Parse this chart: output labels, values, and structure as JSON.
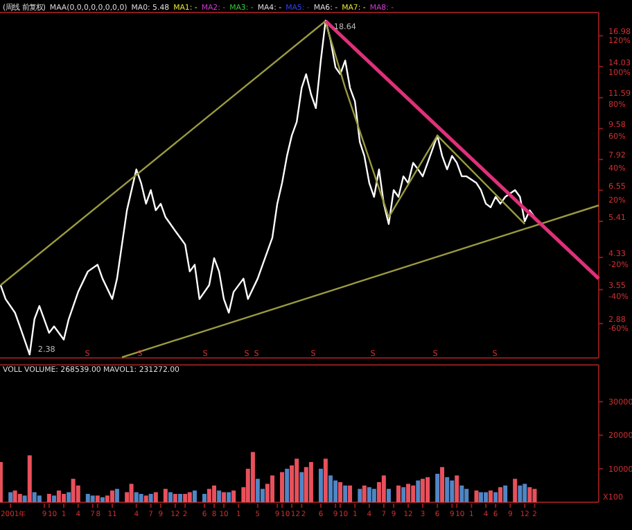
{
  "chart_data": [
    {
      "type": "line",
      "title": "(周线 前复权)",
      "log": "y",
      "grid": false,
      "tick_labels": "y",
      "xlim": [
        "2000-11-27",
        "2011-03-10"
      ],
      "ylim": [
        2.33,
        19.6
      ],
      "yticks": [
        16.98,
        14.03,
        11.59,
        9.58,
        7.92,
        6.55,
        5.41,
        4.33,
        3.55,
        2.88
      ],
      "y2lim": [
        -81.5,
        134.6
      ],
      "y2ticks": [
        {
          "value": 120,
          "label": "120%"
        },
        {
          "value": 100,
          "label": "100%"
        },
        {
          "value": 80,
          "label": "80%"
        },
        {
          "value": 60,
          "label": "60%"
        },
        {
          "value": 40,
          "label": "40%"
        },
        {
          "value": 20,
          "label": "20%"
        },
        {
          "value": -20,
          "label": "-20%"
        },
        {
          "value": -40,
          "label": "-40%"
        },
        {
          "value": -60,
          "label": "-60%"
        }
      ],
      "series": [
        {
          "color": "#ffffff",
          "x": [
            "2000-12",
            "2001-01",
            "2001-03",
            "2001-04",
            "2001-06",
            "2001-07",
            "2001-08",
            "2001-10",
            "2001-11",
            "2002-01",
            "2002-02",
            "2002-04",
            "2002-06",
            "2002-08",
            "2002-09",
            "2002-11",
            "2002-12",
            "2003-01",
            "2003-02",
            "2003-04",
            "2003-05",
            "2003-06",
            "2003-07",
            "2003-08",
            "2003-09",
            "2003-10",
            "2003-11",
            "2003-12",
            "2004-02",
            "2004-03",
            "2004-04",
            "2004-05",
            "2004-07",
            "2004-08",
            "2004-09",
            "2004-10",
            "2004-11",
            "2004-12",
            "2005-02",
            "2005-03",
            "2005-05",
            "2005-06",
            "2005-08",
            "2005-09",
            "2005-10",
            "2005-11",
            "2005-12",
            "2006-01",
            "2006-02",
            "2006-03",
            "2006-04",
            "2006-05",
            "2006-06",
            "2006-07",
            "2006-08",
            "2006-09",
            "2006-10",
            "2006-11",
            "2006-12",
            "2007-01",
            "2007-02",
            "2007-03",
            "2007-04",
            "2007-05",
            "2007-06",
            "2007-07",
            "2007-08",
            "2007-09",
            "2007-10",
            "2007-11",
            "2007-12",
            "2008-01",
            "2008-02",
            "2008-03",
            "2008-04",
            "2008-06",
            "2008-07",
            "2008-08",
            "2008-09",
            "2008-10",
            "2008-11",
            "2008-12",
            "2009-02",
            "2009-03",
            "2009-04",
            "2009-05",
            "2009-06",
            "2009-07",
            "2009-08",
            "2009-10",
            "2009-11",
            "2009-12",
            "2010-01",
            "2010-02"
          ],
          "values": [
            3.65,
            3.35,
            3.08,
            2.83,
            2.38,
            2.96,
            3.21,
            2.72,
            2.83,
            2.61,
            2.96,
            3.5,
            3.97,
            4.14,
            3.8,
            3.35,
            3.8,
            4.69,
            5.79,
            7.45,
            6.85,
            6.03,
            6.56,
            5.79,
            6.03,
            5.55,
            5.32,
            5.1,
            4.69,
            3.97,
            4.14,
            3.35,
            3.65,
            4.31,
            3.97,
            3.35,
            3.08,
            3.5,
            3.8,
            3.35,
            3.8,
            4.14,
            4.89,
            6.03,
            6.85,
            8.1,
            9.18,
            9.99,
            12.32,
            13.4,
            11.82,
            10.87,
            14.58,
            18.64,
            16.54,
            13.98,
            13.4,
            14.58,
            12.32,
            11.33,
            8.81,
            8.1,
            6.85,
            6.29,
            7.45,
            6.03,
            5.32,
            6.56,
            6.29,
            7.14,
            6.85,
            7.76,
            7.45,
            7.14,
            7.76,
            9.18,
            8.1,
            7.45,
            8.1,
            7.76,
            7.14,
            7.14,
            6.85,
            6.56,
            6.03,
            5.9,
            6.29,
            6.03,
            6.29,
            6.56,
            6.29,
            5.41,
            5.79,
            5.55
          ]
        },
        {
          "color": "#9a9a40",
          "x": [
            "2000-12",
            "2006-07"
          ],
          "values": [
            3.65,
            18.6
          ]
        },
        {
          "color": "#9a9a40",
          "x": [
            "2003-01",
            "2011-03-10"
          ],
          "values": [
            2.34,
            5.97
          ]
        },
        {
          "color": "#9a9a40",
          "x": [
            "2006-07",
            "2006-11",
            "2007-08",
            "2008-06",
            "2009-12"
          ],
          "values": [
            18.45,
            12.32,
            5.55,
            9.18,
            5.32
          ]
        },
        {
          "color": "#e0307a",
          "x": [
            "2006-07",
            "2011-03-10"
          ],
          "values": [
            18.6,
            3.8
          ]
        }
      ],
      "annotations": [
        "MAA(0,0,0,0,0,0,0,0)",
        "MA0: 5.48",
        "MA1: -",
        "MA2: -",
        "MA3: -",
        "MA4: -",
        "MA5: -",
        "MA6: -",
        "MA7: -",
        "MA8: -",
        {
          "text": "18.64",
          "x": "2006-07",
          "y": 18.64
        },
        {
          "text": "2.38",
          "x": "2001-06",
          "y": 2.38
        },
        "S",
        "S",
        "S",
        "S",
        "S",
        "S",
        "S",
        "S",
        "S"
      ]
    },
    {
      "type": "bar",
      "title": "VOLL VOLUME: 268539.00 MAVOL1: 231272.00",
      "grid": false,
      "xlim": [
        "2000-11-27",
        "2011-03-10"
      ],
      "ylim": [
        0,
        41000
      ],
      "yticks": [
        10000,
        20000,
        30000
      ],
      "xticks": [
        {
          "value": "2001-02",
          "label": "2001年"
        },
        {
          "value": "2001-09",
          "label": "9"
        },
        {
          "value": "2001-10",
          "label": "10"
        },
        {
          "value": "2002-01",
          "label": "1"
        },
        {
          "value": "2002-04",
          "label": "4"
        },
        {
          "value": "2002-07",
          "label": "7"
        },
        {
          "value": "2002-08",
          "label": "8"
        },
        {
          "value": "2002-11",
          "label": "11"
        },
        {
          "value": "2003-04",
          "label": "4"
        },
        {
          "value": "2003-07",
          "label": "7"
        },
        {
          "value": "2003-09",
          "label": "9"
        },
        {
          "value": "2003-12",
          "label": "12"
        },
        {
          "value": "2004-02",
          "label": "2"
        },
        {
          "value": "2004-06",
          "label": "6"
        },
        {
          "value": "2004-08",
          "label": "8"
        },
        {
          "value": "2004-10",
          "label": "10"
        },
        {
          "value": "2005-01",
          "label": "1"
        },
        {
          "value": "2005-05",
          "label": "5"
        },
        {
          "value": "2005-09",
          "label": "9"
        },
        {
          "value": "2005-10",
          "label": "10"
        },
        {
          "value": "2005-12",
          "label": "12"
        },
        {
          "value": "2006-02",
          "label": "2"
        },
        {
          "value": "2006-06",
          "label": "6"
        },
        {
          "value": "2006-09",
          "label": "9"
        },
        {
          "value": "2006-10",
          "label": "10"
        },
        {
          "value": "2007-01",
          "label": "1"
        },
        {
          "value": "2007-04",
          "label": "4"
        },
        {
          "value": "2007-07",
          "label": "7"
        },
        {
          "value": "2007-09",
          "label": "9"
        },
        {
          "value": "2007-12",
          "label": "12"
        },
        {
          "value": "2008-03",
          "label": "3"
        },
        {
          "value": "2008-06",
          "label": "6"
        },
        {
          "value": "2008-09",
          "label": "9"
        },
        {
          "value": "2008-10",
          "label": "10"
        },
        {
          "value": "2009-01",
          "label": "1"
        },
        {
          "value": "2009-04",
          "label": "4"
        },
        {
          "value": "2009-06",
          "label": "6"
        },
        {
          "value": "2009-09",
          "label": "9"
        },
        {
          "value": "2009-12",
          "label": "12"
        },
        {
          "value": "2010-02",
          "label": "2"
        }
      ],
      "x": [
        "2000-12",
        "2001-02",
        "2001-03",
        "2001-04",
        "2001-05",
        "2001-06",
        "2001-07",
        "2001-08",
        "2001-10",
        "2001-11",
        "2001-12",
        "2002-01",
        "2002-02",
        "2002-03",
        "2002-04",
        "2002-06",
        "2002-07",
        "2002-08",
        "2002-09",
        "2002-10",
        "2002-11",
        "2002-12",
        "2003-02",
        "2003-03",
        "2003-04",
        "2003-05",
        "2003-06",
        "2003-07",
        "2003-08",
        "2003-10",
        "2003-11",
        "2003-12",
        "2004-01",
        "2004-02",
        "2004-03",
        "2004-04",
        "2004-06",
        "2004-07",
        "2004-08",
        "2004-09",
        "2004-10",
        "2004-11",
        "2004-12",
        "2005-02",
        "2005-03",
        "2005-04",
        "2005-05",
        "2005-06",
        "2005-07",
        "2005-08",
        "2005-10",
        "2005-11",
        "2005-12",
        "2006-01",
        "2006-02",
        "2006-03",
        "2006-04",
        "2006-06",
        "2006-07",
        "2006-08",
        "2006-09",
        "2006-10",
        "2006-11",
        "2006-12",
        "2007-02",
        "2007-03",
        "2007-04",
        "2007-05",
        "2007-06",
        "2007-07",
        "2007-08",
        "2007-10",
        "2007-11",
        "2007-12",
        "2008-01",
        "2008-02",
        "2008-03",
        "2008-04",
        "2008-06",
        "2008-07",
        "2008-08",
        "2008-09",
        "2008-10",
        "2008-11",
        "2008-12",
        "2009-02",
        "2009-03",
        "2009-04",
        "2009-05",
        "2009-06",
        "2009-07",
        "2009-08",
        "2009-10",
        "2009-11",
        "2009-12",
        "2010-01",
        "2010-02"
      ],
      "values": [
        12000,
        3000,
        3500,
        2500,
        2000,
        14000,
        3000,
        2000,
        2500,
        2000,
        3500,
        2500,
        3000,
        7000,
        5000,
        2500,
        2000,
        2000,
        1500,
        2000,
        3500,
        4000,
        3000,
        5500,
        3000,
        2500,
        2000,
        2500,
        3000,
        4000,
        3000,
        2500,
        2500,
        2500,
        3000,
        3500,
        2500,
        4000,
        5000,
        3500,
        3000,
        3000,
        3500,
        4500,
        10000,
        15000,
        7000,
        4000,
        5500,
        8000,
        9000,
        10000,
        11000,
        13000,
        9000,
        10500,
        12000,
        10000,
        13000,
        8000,
        6500,
        6000,
        5000,
        5000,
        4000,
        5000,
        4500,
        4000,
        6000,
        8000,
        4000,
        5000,
        4500,
        5500,
        5000,
        6500,
        7000,
        7500,
        8500,
        10500,
        7500,
        6500,
        8000,
        5000,
        4000,
        3500,
        3000,
        3000,
        3500,
        3000,
        4500,
        5000,
        7000,
        5000,
        5500,
        4500,
        4000
      ],
      "colors": [
        "#e8505b",
        "#4f86c6",
        "#e8505b",
        "#e8505b",
        "#4f86c6",
        "#e8505b",
        "#4f86c6",
        "#4f86c6",
        "#e8505b",
        "#4f86c6",
        "#e8505b",
        "#e8505b",
        "#4f86c6",
        "#e8505b",
        "#e8505b",
        "#4f86c6",
        "#4f86c6",
        "#e8505b",
        "#4f86c6",
        "#e8505b",
        "#e8505b",
        "#4f86c6",
        "#e8505b",
        "#e8505b",
        "#4f86c6",
        "#4f86c6",
        "#e8505b",
        "#4f86c6",
        "#e8505b",
        "#e8505b",
        "#4f86c6",
        "#e8505b",
        "#4f86c6",
        "#e8505b",
        "#e8505b",
        "#4f86c6",
        "#4f86c6",
        "#e8505b",
        "#e8505b",
        "#4f86c6",
        "#e8505b",
        "#4f86c6",
        "#e8505b",
        "#e8505b",
        "#e8505b",
        "#e8505b",
        "#4f86c6",
        "#4f86c6",
        "#e8505b",
        "#e8505b",
        "#e8505b",
        "#4f86c6",
        "#e8505b",
        "#e8505b",
        "#4f86c6",
        "#e8505b",
        "#e8505b",
        "#4f86c6",
        "#e8505b",
        "#4f86c6",
        "#4f86c6",
        "#e8505b",
        "#4f86c6",
        "#e8505b",
        "#4f86c6",
        "#e8505b",
        "#4f86c6",
        "#4f86c6",
        "#e8505b",
        "#e8505b",
        "#4f86c6",
        "#e8505b",
        "#4f86c6",
        "#e8505b",
        "#e8505b",
        "#4f86c6",
        "#e8505b",
        "#e8505b",
        "#4f86c6",
        "#e8505b",
        "#4f86c6",
        "#4f86c6",
        "#e8505b",
        "#4f86c6",
        "#4f86c6",
        "#e8505b",
        "#4f86c6",
        "#4f86c6",
        "#e8505b",
        "#4f86c6",
        "#e8505b",
        "#4f86c6",
        "#e8505b",
        "#4f86c6",
        "#4f86c6",
        "#e8505b",
        "#e8505b"
      ],
      "annotations": [
        "X100"
      ]
    }
  ]
}
